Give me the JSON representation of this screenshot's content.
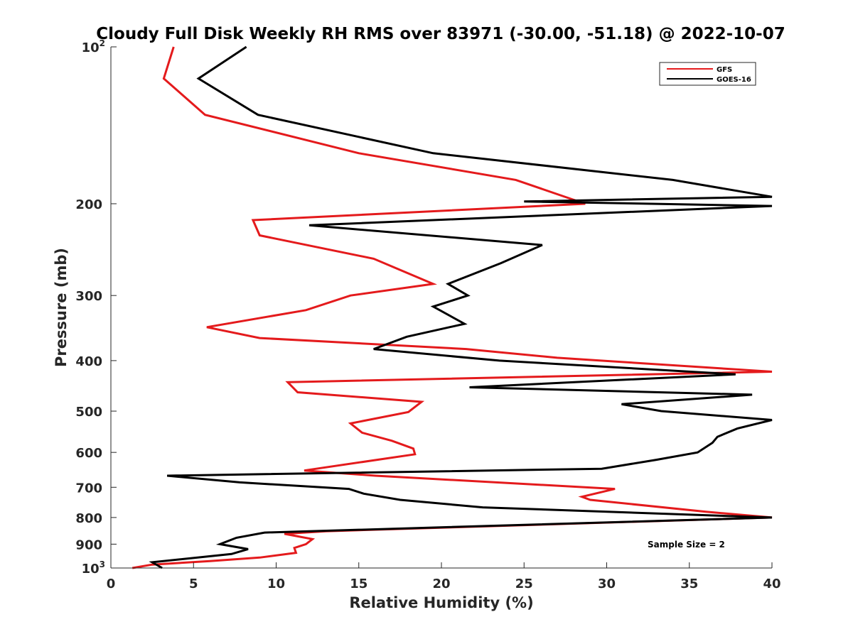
{
  "chart_data": {
    "type": "line",
    "title": "Cloudy Full Disk Weekly RH RMS over 83971 (-30.00, -51.18) @ 2022-10-07",
    "xlabel": "Relative Humidity (%)",
    "ylabel": "Pressure (mb)",
    "xlim": [
      0,
      40
    ],
    "ylim": [
      100,
      1000
    ],
    "y_scale": "log",
    "y_reversed": true,
    "grid": false,
    "legend_position": "top-right",
    "x_ticks": [
      0,
      5,
      10,
      15,
      20,
      25,
      30,
      35,
      40
    ],
    "y_ticks": [
      {
        "value": 100,
        "base": "10",
        "exponent": "2"
      },
      {
        "value": 200,
        "label": "200"
      },
      {
        "value": 300,
        "label": "300"
      },
      {
        "value": 400,
        "label": "400"
      },
      {
        "value": 500,
        "label": "500"
      },
      {
        "value": 600,
        "label": "600"
      },
      {
        "value": 700,
        "label": "700"
      },
      {
        "value": 800,
        "label": "800"
      },
      {
        "value": 900,
        "label": "900"
      },
      {
        "value": 1000,
        "base": "10",
        "exponent": "3"
      }
    ],
    "annotation": "Sample Size = 2",
    "series": [
      {
        "name": "GFS",
        "color": "#e41a1c",
        "points": [
          [
            3.8,
            100
          ],
          [
            3.2,
            115
          ],
          [
            5.7,
            135
          ],
          [
            15.0,
            160
          ],
          [
            24.5,
            180
          ],
          [
            28.7,
            200
          ],
          [
            8.6,
            215
          ],
          [
            9.0,
            230
          ],
          [
            15.9,
            255
          ],
          [
            19.5,
            285
          ],
          [
            14.5,
            300
          ],
          [
            11.8,
            320
          ],
          [
            5.8,
            345
          ],
          [
            9.0,
            362
          ],
          [
            21.5,
            380
          ],
          [
            27.0,
            395
          ],
          [
            40.0,
            420
          ],
          [
            10.7,
            440
          ],
          [
            11.3,
            460
          ],
          [
            18.8,
            480
          ],
          [
            18.0,
            502
          ],
          [
            14.5,
            528
          ],
          [
            15.2,
            550
          ],
          [
            17.0,
            570
          ],
          [
            18.3,
            590
          ],
          [
            18.4,
            605
          ],
          [
            11.7,
            650
          ],
          [
            16.0,
            665
          ],
          [
            30.5,
            705
          ],
          [
            28.5,
            730
          ],
          [
            29.0,
            740
          ],
          [
            36.0,
            780
          ],
          [
            40.0,
            800
          ],
          [
            13.0,
            850
          ],
          [
            10.5,
            860
          ],
          [
            12.2,
            880
          ],
          [
            11.8,
            900
          ],
          [
            11.1,
            915
          ],
          [
            11.2,
            935
          ],
          [
            9.0,
            955
          ],
          [
            6.0,
            970
          ],
          [
            2.5,
            985
          ],
          [
            1.3,
            1000
          ]
        ]
      },
      {
        "name": "GOES-16",
        "color": "#000000",
        "points": [
          [
            8.2,
            100
          ],
          [
            5.3,
            115
          ],
          [
            8.9,
            135
          ],
          [
            19.5,
            160
          ],
          [
            34.0,
            180
          ],
          [
            40.0,
            194
          ],
          [
            25.0,
            198
          ],
          [
            40.0,
            202
          ],
          [
            12.0,
            220
          ],
          [
            26.1,
            240
          ],
          [
            23.6,
            260
          ],
          [
            20.4,
            285
          ],
          [
            21.6,
            300
          ],
          [
            19.5,
            315
          ],
          [
            21.4,
            340
          ],
          [
            17.9,
            360
          ],
          [
            15.9,
            380
          ],
          [
            23.5,
            400
          ],
          [
            37.8,
            425
          ],
          [
            21.7,
            450
          ],
          [
            38.8,
            465
          ],
          [
            30.9,
            485
          ],
          [
            33.3,
            500
          ],
          [
            40.0,
            520
          ],
          [
            37.9,
            540
          ],
          [
            36.7,
            560
          ],
          [
            36.4,
            575
          ],
          [
            35.5,
            600
          ],
          [
            33.0,
            620
          ],
          [
            29.7,
            645
          ],
          [
            3.4,
            665
          ],
          [
            7.8,
            685
          ],
          [
            14.4,
            705
          ],
          [
            15.3,
            720
          ],
          [
            17.5,
            740
          ],
          [
            22.5,
            765
          ],
          [
            40.0,
            800
          ],
          [
            9.3,
            855
          ],
          [
            7.6,
            875
          ],
          [
            6.6,
            900
          ],
          [
            8.3,
            920
          ],
          [
            7.3,
            940
          ],
          [
            2.5,
            975
          ],
          [
            3.1,
            1000
          ]
        ]
      }
    ]
  }
}
